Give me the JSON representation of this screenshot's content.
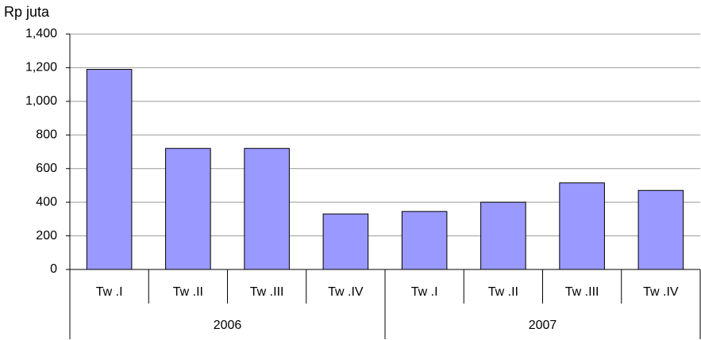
{
  "chart_data": {
    "type": "bar",
    "y_label": "Rp juta",
    "categories": [
      "Tw .I",
      "Tw .II",
      "Tw .III",
      "Tw .IV",
      "Tw .I",
      "Tw .II",
      "Tw .III",
      "Tw .IV"
    ],
    "groups": [
      "2006",
      "2007"
    ],
    "values": [
      1190,
      720,
      720,
      330,
      345,
      400,
      515,
      470
    ],
    "color": "#9999ff",
    "ylim": [
      0,
      1400
    ],
    "yticks": [
      0,
      200,
      400,
      600,
      800,
      {
        "value": 1000,
        "label": "1,000"
      },
      {
        "value": 1200,
        "label": "1,200"
      },
      {
        "value": 1400,
        "label": "1,400"
      }
    ],
    "grid": true
  }
}
